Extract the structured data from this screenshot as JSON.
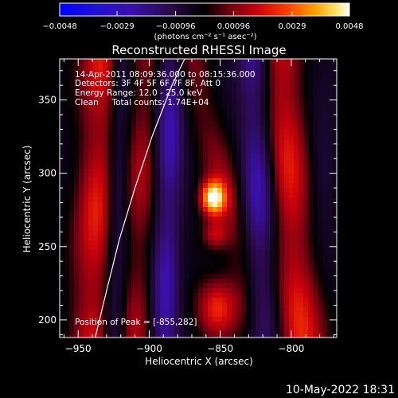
{
  "chart_data": {
    "type": "heatmap",
    "title": "Reconstructed RHESSI Image",
    "xlabel": "Heliocentric X (arcsec)",
    "ylabel": "Heliocentric Y (arcsec)",
    "xlim": [
      -963,
      -768
    ],
    "ylim": [
      188,
      378
    ],
    "xticks": [
      -950,
      -900,
      -850,
      -800
    ],
    "yticks": [
      200,
      250,
      300,
      350
    ],
    "colorbar": {
      "range": [
        -0.0048,
        0.0048
      ],
      "ticks": [
        "-0.0048",
        "-0.0029",
        "-0.00096",
        "0.00096",
        "0.0029",
        "0.0048"
      ],
      "units": "(photons cm⁻² s⁻¹ asec⁻²)"
    },
    "annotations": [
      "14-Apr-2011 08:09:36.000 to 08:15:36.000",
      "Detectors: 3F 4F 5F 6F 7F 8F, Att 0",
      "Energy Range: 12.0 - 25.0 keV",
      "Clean     Total counts: 1.74E+04"
    ],
    "peak_label": "Position of Peak = [-855,282]",
    "peak": {
      "x": -855,
      "y": 282,
      "value": 0.0048
    },
    "limb": [
      [
        -938,
        188
      ],
      [
        -930,
        220
      ],
      [
        -921,
        255
      ],
      [
        -910,
        290
      ],
      [
        -898,
        325
      ],
      [
        -884,
        360
      ],
      [
        -875,
        378
      ]
    ],
    "features": [
      {
        "kind": "source",
        "x": -855,
        "y": 283,
        "sx": 6,
        "sy": 8,
        "amp": 0.0048
      },
      {
        "kind": "source",
        "x": -854,
        "y": 258,
        "sx": 6,
        "sy": 7,
        "amp": 0.0018
      },
      {
        "kind": "source",
        "x": -852,
        "y": 208,
        "sx": 10,
        "sy": 14,
        "amp": 0.0026
      },
      {
        "kind": "ridge",
        "x0": -932,
        "y0": 378,
        "x1": -940,
        "y1": 188,
        "width": 11,
        "amp": 0.0021
      },
      {
        "kind": "ridge",
        "x0": -902,
        "y0": 378,
        "x1": -910,
        "y1": 188,
        "width": 9,
        "amp": 0.0013
      },
      {
        "kind": "ridge",
        "x0": -808,
        "y0": 378,
        "x1": -793,
        "y1": 188,
        "width": 11,
        "amp": 0.0021
      },
      {
        "kind": "ridge",
        "x0": -870,
        "y0": 378,
        "x1": -858,
        "y1": 330,
        "width": 9,
        "amp": 0.0011
      },
      {
        "kind": "ridge",
        "x0": -920,
        "y0": 378,
        "x1": -925,
        "y1": 188,
        "width": 6,
        "amp": -0.0016
      },
      {
        "kind": "ridge",
        "x0": -885,
        "y0": 378,
        "x1": -890,
        "y1": 188,
        "width": 7,
        "amp": -0.0019
      },
      {
        "kind": "ridge",
        "x0": -826,
        "y0": 378,
        "x1": -820,
        "y1": 188,
        "width": 8,
        "amp": -0.0019
      },
      {
        "kind": "source",
        "x": -780,
        "y": 300,
        "sx": 8,
        "sy": 30,
        "amp": -0.0008
      }
    ]
  },
  "timestamp": "10-May-2022 18:31"
}
